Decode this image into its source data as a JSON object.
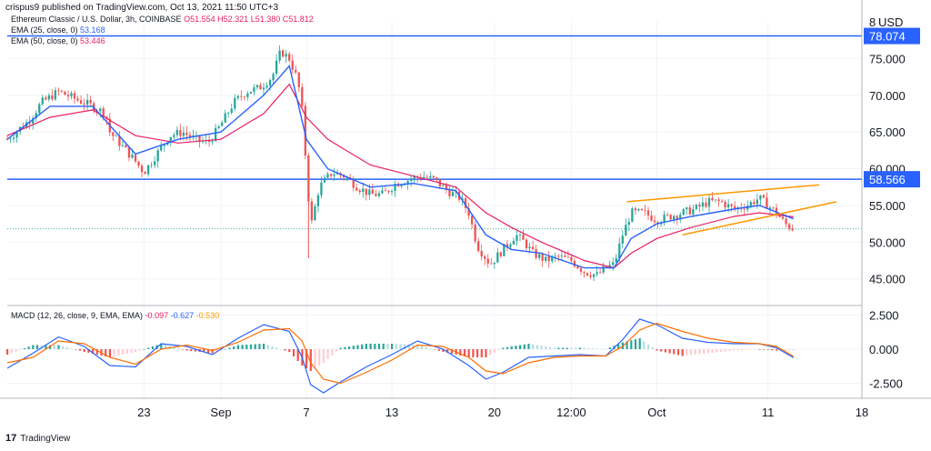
{
  "header": {
    "text": "crispus9 published on TradingView.com, Oct 13, 2021 11:50 UTC+3"
  },
  "legend": {
    "symbol": "Ethereum Classic / U.S. Dollar, 3h, COINBASE",
    "ohlc": {
      "o": "O51.554",
      "h": "H52.321",
      "l": "L51.380",
      "c": "C51.812"
    },
    "ema25_label": "EMA (25, close, 0)",
    "ema25_value": "53.168",
    "ema50_label": "EMA (50, close, 0)",
    "ema50_value": "53.446",
    "macd_label": "MACD (12, 26, close, 9, EMA, EMA)",
    "macd_hist": "-0.097",
    "macd_line": "-0.627",
    "macd_signal": "-0.530"
  },
  "footer": {
    "logo_text": "TradingView",
    "logo_mark": "17"
  },
  "colors": {
    "ema25": "#2962ff",
    "ema50": "#e91e63",
    "up": "#26a69a",
    "down": "#ef5350",
    "level": "#2962ff",
    "channel": "#ff9800",
    "axis_text": "#131722"
  },
  "chart_data": {
    "type": "line",
    "currency": "USD",
    "price_axis": {
      "ticks": [
        "8",
        "75.000",
        "70.000",
        "65.000",
        "60.000",
        "55.000",
        "50.000",
        "45.000"
      ],
      "range": [
        41.5,
        80
      ]
    },
    "time_axis": {
      "ticks": [
        "23",
        "Sep",
        "7",
        "13",
        "20",
        "12:00",
        "Oct",
        "11",
        "18"
      ]
    },
    "horizontal_levels": [
      {
        "value": 78.074,
        "label": "78.074"
      },
      {
        "value": 58.566,
        "label": "58.566"
      }
    ],
    "last_price": 51.812,
    "price_series": {
      "name": "ETC/USD",
      "points": [
        [
          0,
          64
        ],
        [
          5,
          66.5
        ],
        [
          8,
          69
        ],
        [
          12,
          70.5
        ],
        [
          16,
          69.5
        ],
        [
          20,
          68.5
        ],
        [
          23,
          67.5
        ],
        [
          24,
          65
        ],
        [
          27,
          63
        ],
        [
          30,
          61
        ],
        [
          32,
          59.5
        ],
        [
          35,
          62
        ],
        [
          38,
          64.5
        ],
        [
          41,
          65
        ],
        [
          44,
          64
        ],
        [
          47,
          63.5
        ],
        [
          50,
          66
        ],
        [
          53,
          69
        ],
        [
          56,
          70.5
        ],
        [
          59,
          71
        ],
        [
          62,
          72.5
        ],
        [
          64,
          76
        ],
        [
          66,
          75
        ],
        [
          68,
          72
        ],
        [
          69,
          68
        ],
        [
          70,
          60
        ],
        [
          71,
          52
        ],
        [
          73,
          57.5
        ],
        [
          76,
          59.5
        ],
        [
          79,
          59
        ],
        [
          82,
          57.5
        ],
        [
          85,
          56.5
        ],
        [
          88,
          56.5
        ],
        [
          91,
          58
        ],
        [
          94,
          58.5
        ],
        [
          97,
          59
        ],
        [
          100,
          58.5
        ],
        [
          103,
          57
        ],
        [
          106,
          56
        ],
        [
          108,
          54
        ],
        [
          110,
          49.5
        ],
        [
          113,
          47
        ],
        [
          116,
          49
        ],
        [
          119,
          51
        ],
        [
          121,
          50
        ],
        [
          123,
          48.5
        ],
        [
          126,
          47.5
        ],
        [
          129,
          48
        ],
        [
          132,
          47.5
        ],
        [
          135,
          46
        ],
        [
          138,
          45.5
        ],
        [
          140,
          46.5
        ],
        [
          142,
          47
        ],
        [
          144,
          51
        ],
        [
          146,
          54
        ],
        [
          149,
          54
        ],
        [
          152,
          53
        ],
        [
          155,
          53.5
        ],
        [
          158,
          54
        ],
        [
          161,
          54.5
        ],
        [
          164,
          55.5
        ],
        [
          167,
          55.5
        ],
        [
          170,
          54.5
        ],
        [
          173,
          55
        ],
        [
          176,
          56
        ],
        [
          178,
          55
        ],
        [
          180,
          54
        ],
        [
          182,
          52.5
        ],
        [
          184,
          51.812
        ]
      ]
    },
    "ema25": [
      [
        0,
        64
      ],
      [
        10,
        68.5
      ],
      [
        20,
        68.5
      ],
      [
        30,
        62
      ],
      [
        40,
        64
      ],
      [
        50,
        65
      ],
      [
        60,
        70
      ],
      [
        66,
        74
      ],
      [
        70,
        64
      ],
      [
        75,
        60
      ],
      [
        85,
        57.5
      ],
      [
        95,
        58
      ],
      [
        105,
        57
      ],
      [
        112,
        51
      ],
      [
        118,
        49
      ],
      [
        125,
        48.5
      ],
      [
        135,
        46.5
      ],
      [
        142,
        46.5
      ],
      [
        146,
        50.5
      ],
      [
        152,
        52.5
      ],
      [
        160,
        53.5
      ],
      [
        170,
        54.5
      ],
      [
        176,
        55
      ],
      [
        184,
        53.168
      ]
    ],
    "ema50": [
      [
        0,
        64.5
      ],
      [
        10,
        67
      ],
      [
        20,
        68
      ],
      [
        30,
        64.5
      ],
      [
        40,
        63.5
      ],
      [
        50,
        64
      ],
      [
        60,
        67.5
      ],
      [
        66,
        71.5
      ],
      [
        70,
        67
      ],
      [
        75,
        64
      ],
      [
        85,
        60.5
      ],
      [
        95,
        59
      ],
      [
        105,
        57.5
      ],
      [
        112,
        54
      ],
      [
        118,
        52
      ],
      [
        125,
        50
      ],
      [
        135,
        47.5
      ],
      [
        142,
        46.5
      ],
      [
        146,
        48.5
      ],
      [
        152,
        50.5
      ],
      [
        160,
        52
      ],
      [
        170,
        53.5
      ],
      [
        176,
        54
      ],
      [
        184,
        53.446
      ]
    ],
    "channel_lines": [
      {
        "from": [
          145,
          55.5
        ],
        "to": [
          190,
          57.8
        ]
      },
      {
        "from": [
          158,
          51
        ],
        "to": [
          194,
          55.5
        ]
      }
    ],
    "macd": {
      "axis_ticks": [
        "2.500",
        "0.000",
        "-2.500"
      ],
      "range": [
        -3.6,
        3.2
      ],
      "macd_line": [
        [
          0,
          -1.4
        ],
        [
          6,
          -0.3
        ],
        [
          12,
          0.9
        ],
        [
          18,
          0.2
        ],
        [
          24,
          -1.2
        ],
        [
          30,
          -1.3
        ],
        [
          36,
          0.4
        ],
        [
          42,
          0.2
        ],
        [
          48,
          -0.4
        ],
        [
          54,
          0.8
        ],
        [
          60,
          1.8
        ],
        [
          66,
          1.3
        ],
        [
          69,
          -0.6
        ],
        [
          71,
          -2.6
        ],
        [
          74,
          -3.2
        ],
        [
          78,
          -2.4
        ],
        [
          84,
          -1.3
        ],
        [
          90,
          -0.4
        ],
        [
          96,
          0.6
        ],
        [
          102,
          0.0
        ],
        [
          108,
          -1.2
        ],
        [
          112,
          -2.2
        ],
        [
          116,
          -1.7
        ],
        [
          122,
          -0.6
        ],
        [
          128,
          -0.5
        ],
        [
          134,
          -0.4
        ],
        [
          140,
          -0.5
        ],
        [
          144,
          0.7
        ],
        [
          148,
          2.2
        ],
        [
          152,
          1.8
        ],
        [
          158,
          0.8
        ],
        [
          164,
          0.5
        ],
        [
          170,
          0.4
        ],
        [
          176,
          0.4
        ],
        [
          180,
          0.1
        ],
        [
          184,
          -0.627
        ]
      ],
      "signal_line": [
        [
          0,
          -1.0
        ],
        [
          6,
          -0.6
        ],
        [
          12,
          0.6
        ],
        [
          18,
          0.4
        ],
        [
          24,
          -0.6
        ],
        [
          30,
          -1.1
        ],
        [
          36,
          0.0
        ],
        [
          42,
          0.3
        ],
        [
          48,
          -0.1
        ],
        [
          54,
          0.5
        ],
        [
          60,
          1.4
        ],
        [
          66,
          1.5
        ],
        [
          69,
          0.6
        ],
        [
          71,
          -1.0
        ],
        [
          74,
          -2.2
        ],
        [
          78,
          -2.5
        ],
        [
          84,
          -1.7
        ],
        [
          90,
          -0.8
        ],
        [
          96,
          0.3
        ],
        [
          102,
          0.2
        ],
        [
          108,
          -0.6
        ],
        [
          112,
          -1.6
        ],
        [
          116,
          -1.8
        ],
        [
          122,
          -1.0
        ],
        [
          128,
          -0.6
        ],
        [
          134,
          -0.5
        ],
        [
          140,
          -0.5
        ],
        [
          144,
          0.2
        ],
        [
          148,
          1.4
        ],
        [
          152,
          1.9
        ],
        [
          158,
          1.3
        ],
        [
          164,
          0.8
        ],
        [
          170,
          0.5
        ],
        [
          176,
          0.4
        ],
        [
          180,
          0.2
        ],
        [
          184,
          -0.53
        ]
      ]
    }
  }
}
